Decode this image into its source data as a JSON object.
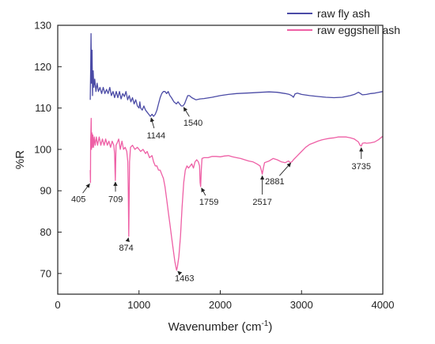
{
  "chart_data": {
    "type": "line",
    "xlabel": "Wavenumber (cm",
    "xlabel_sup": "-1",
    "xlabel_suffix": ")",
    "ylabel": "%R",
    "xlim": [
      0,
      4000
    ],
    "ylim": [
      65,
      130
    ],
    "xticks": [
      0,
      1000,
      2000,
      3000,
      4000
    ],
    "yticks": [
      70,
      80,
      90,
      100,
      110,
      120,
      130
    ],
    "grid": false,
    "legend_position": "top-right",
    "series": [
      {
        "name": "raw fly ash",
        "color": "#4b4ba6",
        "points": [
          [
            400,
            112
          ],
          [
            405,
            119
          ],
          [
            410,
            128
          ],
          [
            416,
            116
          ],
          [
            422,
            124
          ],
          [
            428,
            113
          ],
          [
            436,
            119
          ],
          [
            445,
            115
          ],
          [
            455,
            117
          ],
          [
            470,
            114
          ],
          [
            485,
            116
          ],
          [
            500,
            114
          ],
          [
            520,
            115
          ],
          [
            540,
            113.5
          ],
          [
            560,
            115
          ],
          [
            580,
            113.5
          ],
          [
            600,
            114.5
          ],
          [
            620,
            113.5
          ],
          [
            640,
            115
          ],
          [
            660,
            113
          ],
          [
            680,
            114
          ],
          [
            700,
            112.5
          ],
          [
            720,
            114
          ],
          [
            740,
            112.5
          ],
          [
            760,
            114
          ],
          [
            780,
            112.2
          ],
          [
            800,
            113.5
          ],
          [
            820,
            112.8
          ],
          [
            840,
            114
          ],
          [
            860,
            112
          ],
          [
            880,
            113
          ],
          [
            900,
            111.5
          ],
          [
            920,
            112.5
          ],
          [
            940,
            111
          ],
          [
            960,
            112
          ],
          [
            980,
            110.5
          ],
          [
            1000,
            110
          ],
          [
            1010,
            111.5
          ],
          [
            1020,
            110
          ],
          [
            1040,
            109.5
          ],
          [
            1060,
            110.5
          ],
          [
            1080,
            109.5
          ],
          [
            1100,
            109
          ],
          [
            1120,
            108.5
          ],
          [
            1140,
            108
          ],
          [
            1160,
            108.5
          ],
          [
            1180,
            108
          ],
          [
            1200,
            108.5
          ],
          [
            1220,
            109.5
          ],
          [
            1240,
            111
          ],
          [
            1260,
            112.5
          ],
          [
            1280,
            113.5
          ],
          [
            1300,
            114
          ],
          [
            1320,
            114
          ],
          [
            1340,
            113.5
          ],
          [
            1360,
            114
          ],
          [
            1380,
            113
          ],
          [
            1400,
            112.5
          ],
          [
            1430,
            111.5
          ],
          [
            1460,
            111
          ],
          [
            1480,
            111.5
          ],
          [
            1500,
            111
          ],
          [
            1520,
            110.5
          ],
          [
            1540,
            110.5
          ],
          [
            1560,
            111
          ],
          [
            1580,
            112
          ],
          [
            1600,
            113
          ],
          [
            1620,
            113
          ],
          [
            1650,
            112.5
          ],
          [
            1700,
            112
          ],
          [
            1750,
            112.2
          ],
          [
            1800,
            112.3
          ],
          [
            1900,
            112.6
          ],
          [
            2000,
            113
          ],
          [
            2100,
            113.3
          ],
          [
            2200,
            113.5
          ],
          [
            2300,
            113.6
          ],
          [
            2400,
            113.7
          ],
          [
            2500,
            113.8
          ],
          [
            2600,
            113.9
          ],
          [
            2700,
            113.8
          ],
          [
            2800,
            113.5
          ],
          [
            2850,
            113.3
          ],
          [
            2880,
            113
          ],
          [
            2900,
            112.6
          ],
          [
            2920,
            113.4
          ],
          [
            2950,
            113.6
          ],
          [
            3000,
            113.3
          ],
          [
            3100,
            113
          ],
          [
            3200,
            112.8
          ],
          [
            3300,
            112.6
          ],
          [
            3400,
            112.5
          ],
          [
            3500,
            112.6
          ],
          [
            3600,
            113
          ],
          [
            3650,
            113.3
          ],
          [
            3700,
            113.8
          ],
          [
            3750,
            113.2
          ],
          [
            3800,
            113.3
          ],
          [
            3850,
            113.5
          ],
          [
            3900,
            113.6
          ],
          [
            3950,
            113.8
          ],
          [
            4000,
            114
          ]
        ]
      },
      {
        "name": "raw eggshell ash",
        "color": "#ee5fa5",
        "points": [
          [
            400,
            95
          ],
          [
            403,
            92
          ],
          [
            405,
            102
          ],
          [
            408,
            104
          ],
          [
            412,
            107.5
          ],
          [
            416,
            100
          ],
          [
            420,
            104
          ],
          [
            425,
            100.5
          ],
          [
            432,
            103.5
          ],
          [
            440,
            100.5
          ],
          [
            450,
            103
          ],
          [
            460,
            101
          ],
          [
            475,
            103
          ],
          [
            490,
            101
          ],
          [
            510,
            103
          ],
          [
            530,
            101
          ],
          [
            550,
            102.5
          ],
          [
            570,
            101
          ],
          [
            590,
            102.5
          ],
          [
            610,
            101
          ],
          [
            630,
            102
          ],
          [
            650,
            100.5
          ],
          [
            670,
            102
          ],
          [
            690,
            101
          ],
          [
            700,
            99
          ],
          [
            705,
            95
          ],
          [
            709,
            92.5
          ],
          [
            713,
            97
          ],
          [
            717,
            101
          ],
          [
            730,
            101.5
          ],
          [
            750,
            102.5
          ],
          [
            770,
            100
          ],
          [
            790,
            102
          ],
          [
            810,
            100
          ],
          [
            830,
            100.5
          ],
          [
            850,
            99.5
          ],
          [
            862,
            97
          ],
          [
            868,
            90
          ],
          [
            874,
            79
          ],
          [
            879,
            88
          ],
          [
            884,
            97
          ],
          [
            895,
            100.5
          ],
          [
            920,
            101
          ],
          [
            950,
            100
          ],
          [
            980,
            100.5
          ],
          [
            1000,
            100
          ],
          [
            1020,
            99.5
          ],
          [
            1050,
            100
          ],
          [
            1080,
            99
          ],
          [
            1100,
            99.5
          ],
          [
            1130,
            98
          ],
          [
            1160,
            98.5
          ],
          [
            1180,
            97
          ],
          [
            1200,
            96
          ],
          [
            1220,
            96
          ],
          [
            1240,
            95
          ],
          [
            1260,
            95
          ],
          [
            1280,
            94
          ],
          [
            1300,
            93
          ],
          [
            1320,
            91
          ],
          [
            1340,
            88
          ],
          [
            1360,
            85
          ],
          [
            1380,
            82
          ],
          [
            1400,
            79
          ],
          [
            1420,
            76
          ],
          [
            1440,
            73
          ],
          [
            1455,
            71.5
          ],
          [
            1463,
            70.8
          ],
          [
            1472,
            71.5
          ],
          [
            1490,
            74
          ],
          [
            1510,
            79
          ],
          [
            1530,
            86
          ],
          [
            1550,
            92
          ],
          [
            1570,
            95
          ],
          [
            1590,
            96
          ],
          [
            1610,
            95.5
          ],
          [
            1630,
            96
          ],
          [
            1650,
            96.5
          ],
          [
            1670,
            95.5
          ],
          [
            1690,
            97
          ],
          [
            1710,
            97.5
          ],
          [
            1730,
            97
          ],
          [
            1745,
            96
          ],
          [
            1752,
            92
          ],
          [
            1759,
            91
          ],
          [
            1766,
            95
          ],
          [
            1775,
            97.8
          ],
          [
            1800,
            98
          ],
          [
            1850,
            98
          ],
          [
            1900,
            98.3
          ],
          [
            1950,
            98.3
          ],
          [
            2000,
            98.2
          ],
          [
            2050,
            98.4
          ],
          [
            2100,
            98.5
          ],
          [
            2150,
            98.2
          ],
          [
            2200,
            98
          ],
          [
            2250,
            97.8
          ],
          [
            2300,
            97.5
          ],
          [
            2350,
            97.2
          ],
          [
            2400,
            97
          ],
          [
            2450,
            96.5
          ],
          [
            2490,
            96
          ],
          [
            2505,
            95
          ],
          [
            2517,
            94
          ],
          [
            2530,
            95.5
          ],
          [
            2545,
            96.8
          ],
          [
            2600,
            97.2
          ],
          [
            2650,
            97.8
          ],
          [
            2700,
            97.5
          ],
          [
            2750,
            97
          ],
          [
            2800,
            96.8
          ],
          [
            2840,
            97.2
          ],
          [
            2860,
            96.8
          ],
          [
            2881,
            97
          ],
          [
            2900,
            97.5
          ],
          [
            2950,
            98.5
          ],
          [
            3000,
            99.5
          ],
          [
            3050,
            100.5
          ],
          [
            3100,
            101.2
          ],
          [
            3150,
            101.6
          ],
          [
            3200,
            102
          ],
          [
            3250,
            102.3
          ],
          [
            3300,
            102.5
          ],
          [
            3350,
            102.7
          ],
          [
            3400,
            102.8
          ],
          [
            3450,
            103
          ],
          [
            3500,
            103
          ],
          [
            3550,
            103
          ],
          [
            3600,
            102.8
          ],
          [
            3650,
            102.5
          ],
          [
            3700,
            101.8
          ],
          [
            3720,
            101
          ],
          [
            3735,
            100.8
          ],
          [
            3750,
            101.5
          ],
          [
            3780,
            101.6
          ],
          [
            3800,
            101.5
          ],
          [
            3850,
            101.6
          ],
          [
            3900,
            101.8
          ],
          [
            3950,
            102.4
          ],
          [
            4000,
            103.2
          ]
        ]
      }
    ],
    "annotations": [
      {
        "label": "1144",
        "x": 1144,
        "y": 108,
        "tx": 1210,
        "ty": 102.7
      },
      {
        "label": "1540",
        "x": 1540,
        "y": 110.5,
        "tx": 1665,
        "ty": 105.7
      },
      {
        "label": "405",
        "x": 405,
        "y": 92,
        "tx": 255,
        "ty": 87.3
      },
      {
        "label": "709",
        "x": 709,
        "y": 92.5,
        "tx": 712,
        "ty": 87.3
      },
      {
        "label": "874",
        "x": 874,
        "y": 79,
        "tx": 843,
        "ty": 75.5
      },
      {
        "label": "1463",
        "x": 1463,
        "y": 70.8,
        "tx": 1560,
        "ty": 68.2
      },
      {
        "label": "1759",
        "x": 1759,
        "y": 91,
        "tx": 1860,
        "ty": 86.6
      },
      {
        "label": "2517",
        "x": 2517,
        "y": 94,
        "tx": 2517,
        "ty": 86.6
      },
      {
        "label": "2881",
        "x": 2881,
        "y": 97,
        "tx": 2670,
        "ty": 91.6
      },
      {
        "label": "3735",
        "x": 3735,
        "y": 100.8,
        "tx": 3735,
        "ty": 95.2
      }
    ]
  }
}
